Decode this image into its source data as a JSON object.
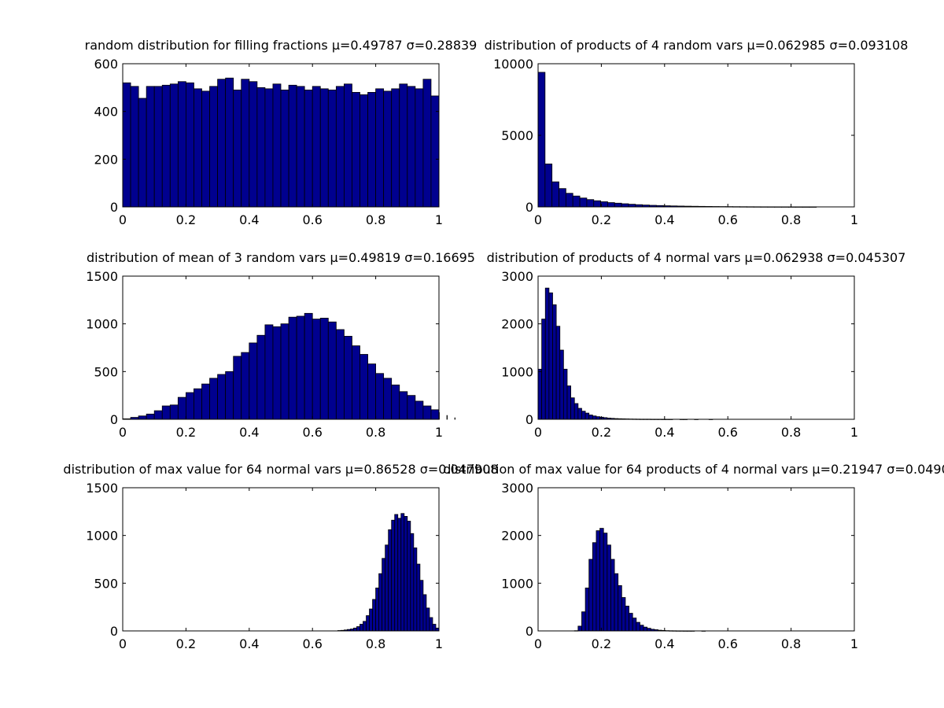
{
  "figure": {
    "bar_color": "#00008f",
    "edge_color": "#000000",
    "background": "#ffffff"
  },
  "chart_data": [
    {
      "type": "bar",
      "title": "random distribution for filling fractions μ=0.49787 σ=0.28839",
      "xlabel": "",
      "ylabel": "",
      "xlim": [
        0,
        1
      ],
      "ylim": [
        0,
        600
      ],
      "xticks": [
        "0",
        "0.2",
        "0.4",
        "0.6",
        "0.8",
        "1"
      ],
      "yticks": [
        "0",
        "200",
        "400",
        "600"
      ],
      "bins": {
        "start": 0.0,
        "width": 0.025
      },
      "values": [
        520,
        505,
        455,
        505,
        505,
        510,
        515,
        525,
        520,
        495,
        485,
        505,
        535,
        540,
        490,
        535,
        525,
        500,
        495,
        515,
        490,
        510,
        505,
        490,
        505,
        495,
        490,
        505,
        515,
        480,
        470,
        480,
        495,
        485,
        495,
        515,
        505,
        495,
        535,
        465
      ]
    },
    {
      "type": "bar",
      "title": "distribution of products of 4 random vars μ=0.062985 σ=0.093108",
      "xlabel": "",
      "ylabel": "",
      "xlim": [
        0,
        1
      ],
      "ylim": [
        0,
        10000
      ],
      "xticks": [
        "0",
        "0.2",
        "0.4",
        "0.6",
        "0.8",
        "1"
      ],
      "yticks": [
        "0",
        "5000",
        "10000"
      ],
      "bins": {
        "start": 0.0,
        "width": 0.022
      },
      "values": [
        9400,
        3000,
        1750,
        1280,
        950,
        760,
        620,
        510,
        430,
        360,
        300,
        260,
        220,
        185,
        155,
        130,
        110,
        95,
        80,
        68,
        58,
        50,
        43,
        37,
        31,
        26,
        22,
        19,
        16,
        13,
        11,
        9,
        7,
        6,
        5,
        4,
        3,
        2,
        1,
        1
      ]
    },
    {
      "type": "bar",
      "title": "distribution of mean of 3 random vars μ=0.49819 σ=0.16695",
      "xlabel": "",
      "ylabel": "",
      "xlim": [
        0,
        1
      ],
      "ylim": [
        0,
        1500
      ],
      "xticks": [
        "0",
        "0.2",
        "0.4",
        "0.6",
        "0.8",
        "1"
      ],
      "yticks": [
        "0",
        "500",
        "1000",
        "1500"
      ],
      "bins": {
        "start": 0.0,
        "width": 0.025
      },
      "values": [
        5,
        20,
        35,
        55,
        90,
        140,
        150,
        230,
        280,
        320,
        370,
        430,
        470,
        500,
        660,
        700,
        800,
        880,
        990,
        970,
        1000,
        1070,
        1080,
        1110,
        1050,
        1060,
        1020,
        940,
        870,
        770,
        680,
        580,
        480,
        430,
        360,
        290,
        250,
        190,
        140,
        100,
        70,
        40,
        15
      ]
    },
    {
      "type": "bar",
      "title": "distribution of products of 4 normal vars μ=0.062938 σ=0.045307",
      "xlabel": "",
      "ylabel": "",
      "xlim": [
        0,
        1
      ],
      "ylim": [
        0,
        3000
      ],
      "xticks": [
        "0",
        "0.2",
        "0.4",
        "0.6",
        "0.8",
        "1"
      ],
      "yticks": [
        "0",
        "1000",
        "2000",
        "3000"
      ],
      "bins": {
        "start": 0.0,
        "width": 0.0115
      },
      "values": [
        1050,
        2100,
        2750,
        2650,
        2400,
        1950,
        1450,
        1050,
        700,
        450,
        330,
        230,
        170,
        130,
        90,
        70,
        55,
        45,
        35,
        25,
        20,
        15,
        12,
        10,
        8,
        6,
        5,
        4,
        3,
        3,
        3,
        2,
        2,
        2,
        1,
        1,
        1,
        0,
        0,
        1,
        1,
        0,
        0,
        1,
        0,
        0,
        0,
        1
      ]
    },
    {
      "type": "bar",
      "title": "distribution of max value for 64 normal vars μ=0.86528 σ=0.047908",
      "xlabel": "",
      "ylabel": "",
      "xlim": [
        0,
        1
      ],
      "ylim": [
        0,
        1500
      ],
      "xticks": [
        "0",
        "0.2",
        "0.4",
        "0.6",
        "0.8",
        "1"
      ],
      "yticks": [
        "0",
        "500",
        "1000",
        "1500"
      ],
      "bins": {
        "start": 0.0,
        "width": 0.01
      },
      "values": [
        0,
        0,
        0,
        0,
        0,
        0,
        0,
        0,
        0,
        0,
        0,
        0,
        0,
        0,
        0,
        0,
        0,
        0,
        0,
        0,
        0,
        0,
        0,
        0,
        0,
        0,
        0,
        0,
        0,
        0,
        0,
        0,
        0,
        0,
        0,
        0,
        0,
        0,
        0,
        0,
        0,
        0,
        0,
        0,
        0,
        0,
        0,
        0,
        0,
        0,
        0,
        0,
        0,
        0,
        0,
        0,
        0,
        0,
        0,
        0,
        0,
        0,
        0,
        0,
        0,
        0,
        0,
        0,
        4,
        6,
        10,
        15,
        20,
        30,
        45,
        70,
        100,
        160,
        230,
        330,
        450,
        600,
        760,
        900,
        1060,
        1160,
        1220,
        1180,
        1230,
        1200,
        1150,
        1020,
        870,
        700,
        530,
        380,
        240,
        140,
        70,
        30
      ]
    },
    {
      "type": "bar",
      "title": "distribution of max value for 64 products of 4 normal vars μ=0.21947 σ=0.0490",
      "xlabel": "",
      "ylabel": "",
      "xlim": [
        0,
        1
      ],
      "ylim": [
        0,
        3000
      ],
      "xticks": [
        "0",
        "0.2",
        "0.4",
        "0.6",
        "0.8",
        "1"
      ],
      "yticks": [
        "0",
        "1000",
        "2000",
        "3000"
      ],
      "bins": {
        "start": 0.0,
        "width": 0.0115
      },
      "values": [
        0,
        0,
        0,
        0,
        0,
        0,
        0,
        0,
        0,
        0,
        5,
        100,
        400,
        900,
        1500,
        1850,
        2100,
        2150,
        2050,
        1800,
        1500,
        1200,
        950,
        700,
        520,
        370,
        270,
        180,
        120,
        80,
        55,
        35,
        25,
        15,
        10,
        6,
        4,
        3,
        2,
        2,
        1,
        1,
        1,
        0,
        0,
        1,
        0,
        0,
        0,
        0
      ]
    }
  ]
}
